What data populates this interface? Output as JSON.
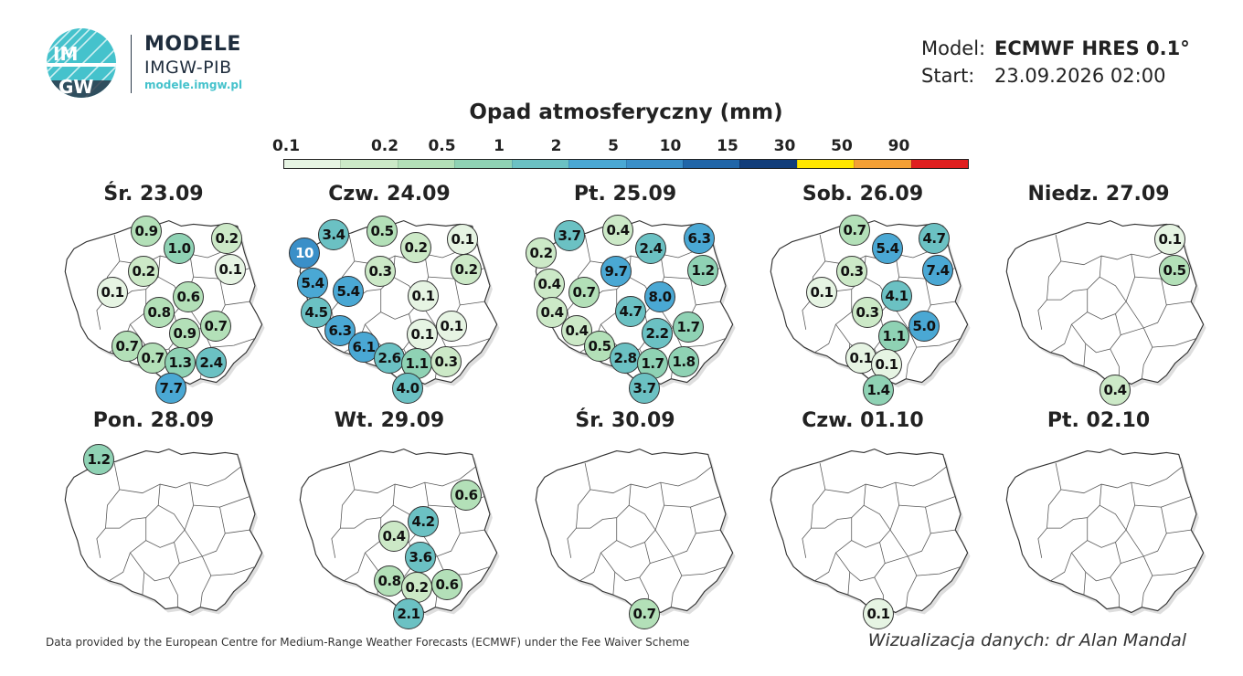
{
  "logo": {
    "title": "MODELE",
    "subtitle": "IMGW-PIB",
    "url": "modele.imgw.pl",
    "badge_top": "IM",
    "badge_bottom": "GW",
    "color": "#45c2cc"
  },
  "model": {
    "model_label": "Model:",
    "model_value": "ECMWF HRES 0.1°",
    "start_label": "Start:",
    "start_value": "23.09.2026 02:00"
  },
  "legend": {
    "title": "Opad atmosferyczny (mm)",
    "ticks": [
      "0.1",
      "0.2",
      "0.5",
      "1",
      "2",
      "5",
      "10",
      "15",
      "30",
      "50",
      "90"
    ],
    "colors": [
      "#e6f4e3",
      "#cce9c7",
      "#b3e0b8",
      "#8fd2b4",
      "#6bc1c3",
      "#4aa8d4",
      "#3a8fc8",
      "#2166a8",
      "#123d7a",
      "#ffe600",
      "#f4a035",
      "#e02020"
    ]
  },
  "days": [
    {
      "title": "Śr. 23.09",
      "points": [
        {
          "v": "0.9"
        },
        {
          "v": "1.0"
        },
        {
          "v": "0.2"
        },
        {
          "v": "0.2"
        },
        {
          "v": "0.1"
        },
        {
          "v": "0.1"
        },
        {
          "v": "0.6"
        },
        {
          "v": "0.8"
        },
        {
          "v": "0.9"
        },
        {
          "v": "0.7"
        },
        {
          "v": "0.7"
        },
        {
          "v": "0.7"
        },
        {
          "v": "1.3"
        },
        {
          "v": "2.4"
        },
        {
          "v": "7.7"
        }
      ]
    },
    {
      "title": "Czw. 24.09",
      "points": [
        {
          "v": "3.4"
        },
        {
          "v": "0.5"
        },
        {
          "v": "0.2"
        },
        {
          "v": "0.1"
        },
        {
          "v": "10"
        },
        {
          "v": "0.3"
        },
        {
          "v": "0.2"
        },
        {
          "v": "5.4"
        },
        {
          "v": "5.4"
        },
        {
          "v": "0.1"
        },
        {
          "v": "4.5"
        },
        {
          "v": "6.3"
        },
        {
          "v": "0.1"
        },
        {
          "v": "0.1"
        },
        {
          "v": "6.1"
        },
        {
          "v": "2.6"
        },
        {
          "v": "1.1"
        },
        {
          "v": "0.3"
        },
        {
          "v": "4.0"
        }
      ]
    },
    {
      "title": "Pt. 25.09",
      "points": [
        {
          "v": "3.7"
        },
        {
          "v": "0.4"
        },
        {
          "v": "6.3"
        },
        {
          "v": "0.2"
        },
        {
          "v": "2.4"
        },
        {
          "v": "9.7"
        },
        {
          "v": "1.2"
        },
        {
          "v": "0.4"
        },
        {
          "v": "0.7"
        },
        {
          "v": "8.0"
        },
        {
          "v": "4.7"
        },
        {
          "v": "0.4"
        },
        {
          "v": "1.7"
        },
        {
          "v": "0.4"
        },
        {
          "v": "2.2"
        },
        {
          "v": "0.5"
        },
        {
          "v": "2.8"
        },
        {
          "v": "1.7"
        },
        {
          "v": "1.8"
        },
        {
          "v": "3.7"
        }
      ]
    },
    {
      "title": "Sob. 26.09",
      "points": [
        {
          "v": "0.7"
        },
        {
          "v": "5.4"
        },
        {
          "v": "4.7"
        },
        {
          "v": "0.3"
        },
        {
          "v": "7.4"
        },
        {
          "v": "0.1"
        },
        {
          "v": "4.1"
        },
        {
          "v": "0.3"
        },
        {
          "v": "1.1"
        },
        {
          "v": "5.0"
        },
        {
          "v": "0.1"
        },
        {
          "v": "0.1"
        },
        {
          "v": "1.4"
        }
      ]
    },
    {
      "title": "Niedz. 27.09",
      "points": [
        {
          "v": "0.1"
        },
        {
          "v": "0.5"
        },
        {
          "v": "0.4"
        }
      ]
    },
    {
      "title": "Pon. 28.09",
      "points": [
        {
          "v": "1.2"
        }
      ]
    },
    {
      "title": "Wt. 29.09",
      "points": [
        {
          "v": "0.6"
        },
        {
          "v": "4.2"
        },
        {
          "v": "0.4"
        },
        {
          "v": "3.6"
        },
        {
          "v": "0.8"
        },
        {
          "v": "0.2"
        },
        {
          "v": "0.6"
        },
        {
          "v": "2.1"
        }
      ]
    },
    {
      "title": "Śr. 30.09",
      "points": [
        {
          "v": "0.7"
        }
      ]
    },
    {
      "title": "Czw. 01.10",
      "points": [
        {
          "v": "0.1"
        }
      ]
    },
    {
      "title": "Pt. 02.10",
      "points": []
    }
  ],
  "footer": {
    "source": "Data provided by the European Centre for Medium-Range Weather Forecasts (ECMWF) under the Fee Waiver Scheme",
    "credit": "Wizualizacja danych: dr Alan Mandal"
  }
}
